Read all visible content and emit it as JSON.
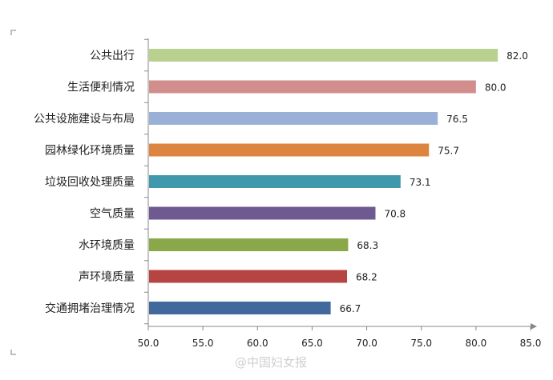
{
  "chart_data": {
    "type": "bar",
    "orientation": "horizontal",
    "title": "",
    "xlabel": "",
    "ylabel": "",
    "categories": [
      "公共出行",
      "生活便利情况",
      "公共设施建设与布局",
      "园林绿化环境质量",
      "垃圾回收处理质量",
      "空气质量",
      "水环境质量",
      "声环境质量",
      "交通拥堵治理情况"
    ],
    "values": [
      82.0,
      80.0,
      76.5,
      75.7,
      73.1,
      70.8,
      68.3,
      68.2,
      66.7
    ],
    "value_labels": [
      "82.0",
      "80.0",
      "76.5",
      "75.7",
      "73.1",
      "70.8",
      "68.3",
      "68.2",
      "66.7"
    ],
    "colors": [
      "#b9d08f",
      "#d28e8c",
      "#9bb0d6",
      "#dd8440",
      "#3f98ac",
      "#6e5990",
      "#8aa84a",
      "#b64443",
      "#42699b"
    ],
    "xlim": [
      50.0,
      85.0
    ],
    "xticks": [
      "50.0",
      "55.0",
      "60.0",
      "65.0",
      "70.0",
      "75.0",
      "80.0",
      "85.0"
    ],
    "grid": false,
    "legend": "none"
  },
  "watermark": {
    "text": "@中国妇女报"
  }
}
